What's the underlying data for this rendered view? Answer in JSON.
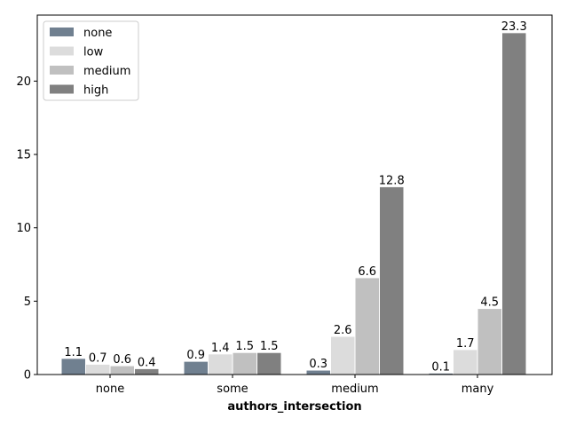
{
  "chart_data": {
    "type": "bar",
    "title": "",
    "xlabel": "authors_intersection",
    "ylabel": "",
    "categories": [
      "none",
      "some",
      "medium",
      "many"
    ],
    "series": [
      {
        "name": "none",
        "color": "#708090",
        "values": [
          1.1,
          0.9,
          0.3,
          0.1
        ]
      },
      {
        "name": "low",
        "color": "#dcdcdc",
        "values": [
          0.7,
          1.4,
          2.6,
          1.7
        ]
      },
      {
        "name": "medium",
        "color": "#c0c0c0",
        "values": [
          0.6,
          1.5,
          6.6,
          4.5
        ]
      },
      {
        "name": "high",
        "color": "#808080",
        "values": [
          0.4,
          1.5,
          12.8,
          23.3
        ]
      }
    ],
    "ylim": [
      0,
      24.5
    ],
    "yticks": [
      0,
      5,
      10,
      15,
      20
    ],
    "grid": false,
    "legend_position": "top-left"
  }
}
